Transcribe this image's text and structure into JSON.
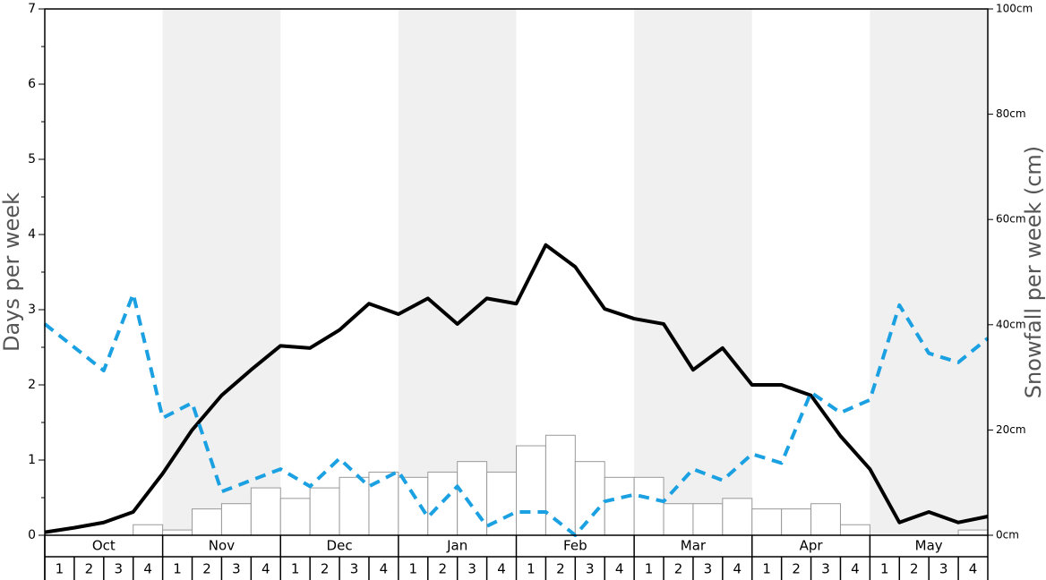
{
  "chart_data": {
    "type": "combo",
    "y_label": "Days per week",
    "y2_label": "Snowfall per week (cm)",
    "months": [
      "Oct",
      "Nov",
      "Dec",
      "Jan",
      "Feb",
      "Mar",
      "Apr",
      "May"
    ],
    "weeks": [
      "1",
      "2",
      "3",
      "4"
    ],
    "shaded_months": [
      false,
      true,
      false,
      true,
      false,
      true,
      false,
      true
    ],
    "shade_color": "#f0f0f0",
    "ylim": [
      0,
      7
    ],
    "yticks": [
      0,
      1,
      2,
      3,
      4,
      5,
      6,
      7
    ],
    "y2lim": [
      0,
      100
    ],
    "y2ticks": [
      {
        "value": 0,
        "label": "0cm"
      },
      {
        "value": 20,
        "label": "20cm"
      },
      {
        "value": 40,
        "label": "40cm"
      },
      {
        "value": 60,
        "label": "60cm"
      },
      {
        "value": 80,
        "label": "80cm"
      },
      {
        "value": 100,
        "label": "100cm"
      }
    ],
    "bars": {
      "axis": "y2",
      "color": "#ffffff",
      "stroke": "#999999",
      "values": [
        0,
        0,
        0,
        2,
        1,
        5,
        6,
        9,
        7,
        9,
        11,
        12,
        11,
        12,
        14,
        12,
        17,
        19,
        14,
        11,
        11,
        6,
        6,
        7,
        5,
        5,
        6,
        2,
        0,
        0,
        0,
        1
      ]
    },
    "series": [
      {
        "color": "#000000",
        "dash": false,
        "values": [
          0.04,
          0.1,
          0.17,
          0.31,
          0.82,
          1.4,
          1.86,
          2.2,
          2.52,
          2.49,
          2.73,
          3.08,
          2.94,
          3.15,
          2.81,
          3.15,
          3.08,
          3.86,
          3.57,
          3.01,
          2.88,
          2.81,
          2.2,
          2.49,
          2.0,
          2.0,
          1.86,
          1.32,
          0.88,
          0.17,
          0.31,
          0.17,
          0.25
        ]
      },
      {
        "color": "#1ba1e2",
        "dash": true,
        "values": [
          2.81,
          2.5,
          2.19,
          3.21,
          1.56,
          1.76,
          0.58,
          0.73,
          0.88,
          0.65,
          1.02,
          0.65,
          0.85,
          0.24,
          0.65,
          0.12,
          0.31,
          0.31,
          0,
          0.45,
          0.54,
          0.45,
          0.88,
          0.73,
          1.08,
          0.96,
          1.9,
          1.63,
          1.8,
          3.06,
          2.42,
          2.3,
          2.62
        ]
      }
    ]
  }
}
